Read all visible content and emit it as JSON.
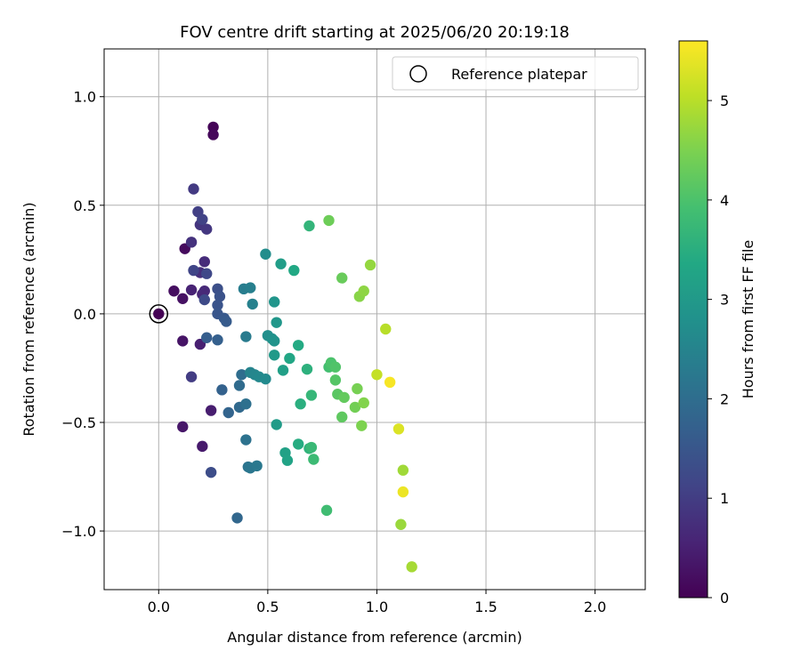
{
  "chart_data": {
    "type": "scatter",
    "title": "FOV centre drift starting at 2025/06/20 20:19:18",
    "xlabel": "Angular distance from reference (arcmin)",
    "ylabel": "Rotation from reference (arcmin)",
    "xlim": [
      -0.25,
      2.23
    ],
    "ylim": [
      -1.27,
      1.22
    ],
    "xticks": [
      0.0,
      0.5,
      1.0,
      1.5,
      2.0
    ],
    "xtick_labels": [
      "0.0",
      "0.5",
      "1.0",
      "1.5",
      "2.0"
    ],
    "yticks": [
      -1.0,
      -0.5,
      0.0,
      0.5,
      1.0
    ],
    "ytick_labels": [
      "−1.0",
      "−0.5",
      "0.0",
      "0.5",
      "1.0"
    ],
    "grid": true,
    "legend": {
      "placement": "top-right",
      "entries": [
        "Reference platepar"
      ]
    },
    "reference_point": {
      "x": 0.0,
      "y": 0.0,
      "label": "Reference platepar"
    },
    "colormap": "viridis",
    "colorbar": {
      "label": "Hours from first FF file",
      "range": [
        0,
        5.6
      ],
      "ticks": [
        0,
        1,
        2,
        3,
        4,
        5
      ],
      "tick_labels": [
        "0",
        "1",
        "2",
        "3",
        "4",
        "5"
      ]
    },
    "series": [
      {
        "columns": [
          "x",
          "y",
          "hours"
        ],
        "points": [
          [
            0.0,
            0.0,
            0.0
          ],
          [
            0.25,
            0.86,
            0.05
          ],
          [
            0.25,
            0.825,
            0.1
          ],
          [
            0.12,
            0.3,
            0.15
          ],
          [
            0.07,
            0.105,
            0.2
          ],
          [
            0.11,
            0.07,
            0.25
          ],
          [
            0.11,
            -0.125,
            0.3
          ],
          [
            0.11,
            -0.52,
            0.35
          ],
          [
            0.2,
            -0.61,
            0.4
          ],
          [
            0.24,
            -0.445,
            0.45
          ],
          [
            0.19,
            -0.14,
            0.5
          ],
          [
            0.15,
            0.11,
            0.55
          ],
          [
            0.2,
            0.09,
            0.6
          ],
          [
            0.21,
            0.105,
            0.65
          ],
          [
            0.21,
            0.24,
            0.7
          ],
          [
            0.19,
            0.19,
            0.75
          ],
          [
            0.15,
            0.33,
            0.8
          ],
          [
            0.19,
            0.41,
            0.85
          ],
          [
            0.22,
            0.39,
            0.9
          ],
          [
            0.16,
            0.575,
            0.95
          ],
          [
            0.15,
            -0.29,
            1.0
          ],
          [
            0.18,
            0.47,
            1.05
          ],
          [
            0.2,
            0.435,
            1.1
          ],
          [
            0.16,
            0.2,
            1.15
          ],
          [
            0.22,
            0.185,
            1.2
          ],
          [
            0.21,
            0.065,
            1.25
          ],
          [
            0.24,
            -0.73,
            1.3
          ],
          [
            0.27,
            0.115,
            1.35
          ],
          [
            0.28,
            0.08,
            1.4
          ],
          [
            0.27,
            0.04,
            1.45
          ],
          [
            0.27,
            0.0,
            1.5
          ],
          [
            0.3,
            -0.02,
            1.55
          ],
          [
            0.31,
            -0.035,
            1.6
          ],
          [
            0.22,
            -0.11,
            1.65
          ],
          [
            0.27,
            -0.12,
            1.7
          ],
          [
            0.29,
            -0.35,
            1.75
          ],
          [
            0.32,
            -0.455,
            1.8
          ],
          [
            0.36,
            -0.94,
            1.85
          ],
          [
            0.37,
            -0.43,
            1.9
          ],
          [
            0.37,
            -0.33,
            1.95
          ],
          [
            0.38,
            -0.28,
            2.0
          ],
          [
            0.4,
            -0.415,
            2.05
          ],
          [
            0.4,
            -0.58,
            2.1
          ],
          [
            0.41,
            -0.705,
            2.15
          ],
          [
            0.42,
            -0.71,
            2.2
          ],
          [
            0.45,
            -0.7,
            2.25
          ],
          [
            0.4,
            -0.105,
            2.3
          ],
          [
            0.39,
            0.115,
            2.35
          ],
          [
            0.42,
            0.12,
            2.4
          ],
          [
            0.43,
            0.045,
            2.45
          ],
          [
            0.42,
            -0.27,
            2.5
          ],
          [
            0.44,
            -0.28,
            2.55
          ],
          [
            0.46,
            -0.29,
            2.6
          ],
          [
            0.49,
            -0.3,
            2.65
          ],
          [
            0.49,
            0.275,
            2.7
          ],
          [
            0.5,
            -0.1,
            2.75
          ],
          [
            0.52,
            -0.115,
            2.8
          ],
          [
            0.53,
            -0.125,
            2.85
          ],
          [
            0.53,
            0.055,
            2.9
          ],
          [
            0.54,
            -0.04,
            2.95
          ],
          [
            0.53,
            -0.19,
            3.0
          ],
          [
            0.54,
            -0.51,
            3.05
          ],
          [
            0.56,
            0.23,
            3.1
          ],
          [
            0.57,
            -0.26,
            3.15
          ],
          [
            0.58,
            -0.64,
            3.2
          ],
          [
            0.59,
            -0.675,
            3.25
          ],
          [
            0.6,
            -0.205,
            3.3
          ],
          [
            0.62,
            0.2,
            3.35
          ],
          [
            0.64,
            -0.145,
            3.4
          ],
          [
            0.64,
            -0.6,
            3.45
          ],
          [
            0.65,
            -0.415,
            3.5
          ],
          [
            0.68,
            -0.255,
            3.55
          ],
          [
            0.69,
            -0.62,
            3.6
          ],
          [
            0.69,
            0.405,
            3.65
          ],
          [
            0.7,
            -0.375,
            3.7
          ],
          [
            0.7,
            -0.615,
            3.75
          ],
          [
            0.71,
            -0.67,
            3.8
          ],
          [
            0.77,
            -0.905,
            3.85
          ],
          [
            0.78,
            -0.245,
            3.9
          ],
          [
            0.79,
            -0.24,
            3.95
          ],
          [
            0.79,
            -0.225,
            4.0
          ],
          [
            0.81,
            -0.245,
            4.05
          ],
          [
            0.81,
            -0.305,
            4.1
          ],
          [
            0.82,
            -0.37,
            4.15
          ],
          [
            0.84,
            -0.475,
            4.2
          ],
          [
            0.85,
            -0.385,
            4.25
          ],
          [
            0.84,
            0.165,
            4.3
          ],
          [
            0.78,
            0.43,
            4.35
          ],
          [
            0.9,
            -0.43,
            4.4
          ],
          [
            0.91,
            -0.345,
            4.45
          ],
          [
            0.93,
            -0.515,
            4.5
          ],
          [
            0.94,
            -0.41,
            4.55
          ],
          [
            0.92,
            0.08,
            4.6
          ],
          [
            0.94,
            0.105,
            4.65
          ],
          [
            0.97,
            0.225,
            4.7
          ],
          [
            1.11,
            -0.97,
            4.75
          ],
          [
            1.12,
            -0.72,
            4.8
          ],
          [
            1.16,
            -1.165,
            4.85
          ],
          [
            1.04,
            -0.07,
            5.0
          ],
          [
            1.0,
            -0.28,
            5.1
          ],
          [
            1.1,
            -0.53,
            5.3
          ],
          [
            1.12,
            -0.82,
            5.45
          ],
          [
            1.06,
            -0.315,
            5.55
          ]
        ]
      }
    ]
  }
}
